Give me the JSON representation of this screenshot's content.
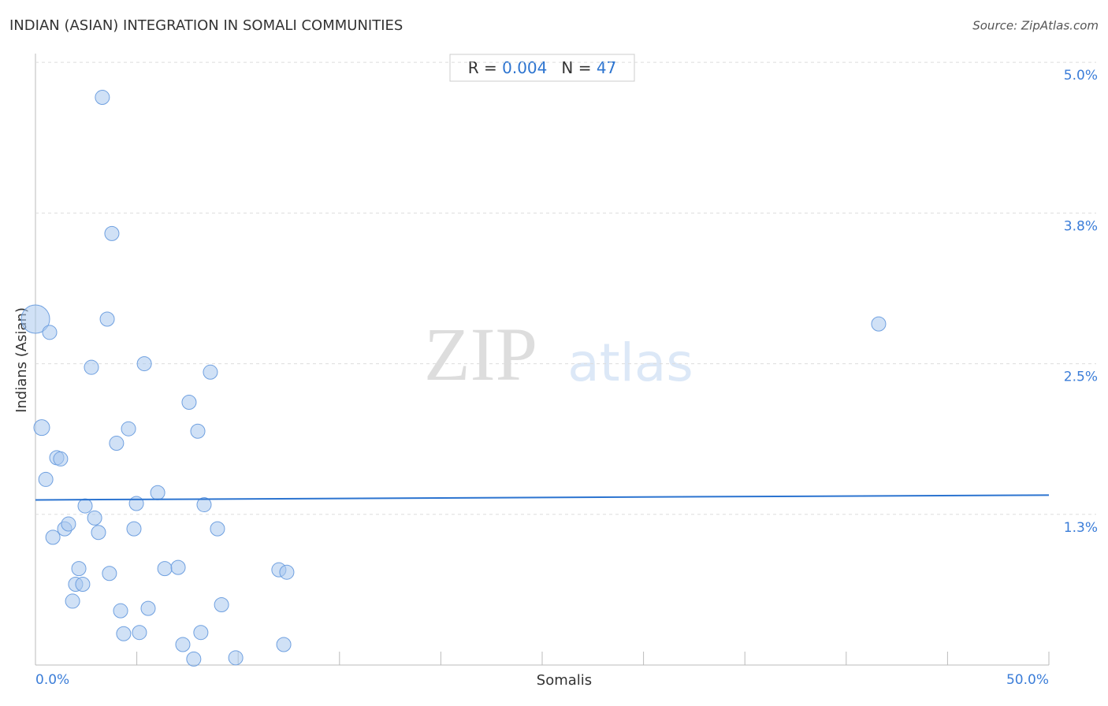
{
  "chart_data": {
    "type": "scatter",
    "title": "INDIAN (ASIAN) INTEGRATION IN SOMALI COMMUNITIES",
    "source": "Source: ZipAtlas.com",
    "xlabel": "Somalis",
    "ylabel": "Indians (Asian)",
    "watermark": [
      "ZIP",
      "atlas"
    ],
    "stats": {
      "r_label": "R =",
      "r": "0.004",
      "n_label": "N =",
      "n": "47"
    },
    "xlim": [
      0,
      50
    ],
    "ylim": [
      0,
      5.06
    ],
    "xticks": [
      {
        "value": 0,
        "label": "0.0%"
      },
      {
        "value": 5,
        "label": null
      },
      {
        "value": 10,
        "label": null
      },
      {
        "value": 15,
        "label": null
      },
      {
        "value": 20,
        "label": null
      },
      {
        "value": 25,
        "label": null
      },
      {
        "value": 30,
        "label": null
      },
      {
        "value": 35,
        "label": null
      },
      {
        "value": 40,
        "label": null
      },
      {
        "value": 45,
        "label": null
      },
      {
        "value": 50,
        "label": "50.0%"
      }
    ],
    "yticks": [
      {
        "value": 1.25,
        "label": "1.3%"
      },
      {
        "value": 2.5,
        "label": "2.5%"
      },
      {
        "value": 3.75,
        "label": "3.8%"
      },
      {
        "value": 5.0,
        "label": "5.0%"
      }
    ],
    "grid": true,
    "color": "#a9c8ef",
    "edge_color": "#6fa0e0",
    "trend": {
      "color": "#2c74d0",
      "x": [
        0,
        50
      ],
      "y": [
        1.37,
        1.41
      ]
    },
    "x": [
      0,
      0.7,
      0.31,
      0.51,
      0.86,
      1.05,
      1.24,
      1.44,
      1.63,
      1.83,
      1.98,
      2.14,
      2.33,
      2.45,
      2.76,
      2.92,
      3.11,
      3.3,
      3.54,
      3.65,
      3.77,
      4.0,
      4.2,
      4.35,
      4.59,
      4.86,
      4.98,
      5.13,
      5.37,
      5.56,
      6.03,
      6.38,
      7.04,
      7.27,
      7.58,
      7.81,
      8.01,
      8.16,
      8.32,
      8.63,
      8.98,
      9.18,
      9.88,
      12.01,
      12.25,
      12.4,
      41.6
    ],
    "values": [
      2.87,
      2.76,
      1.97,
      1.54,
      1.06,
      1.72,
      1.71,
      1.13,
      1.17,
      0.53,
      0.67,
      0.8,
      0.67,
      1.32,
      2.47,
      1.22,
      1.1,
      4.71,
      2.87,
      0.76,
      3.58,
      1.84,
      0.45,
      0.26,
      1.96,
      1.13,
      1.34,
      0.27,
      2.5,
      0.47,
      1.43,
      0.8,
      0.81,
      0.17,
      2.18,
      0.05,
      1.94,
      0.27,
      1.33,
      2.43,
      1.13,
      0.5,
      0.06,
      0.79,
      0.17,
      0.77,
      2.83
    ],
    "sizes": [
      18,
      9,
      10,
      9,
      9,
      9,
      9,
      9,
      9,
      9,
      9,
      9,
      9,
      9,
      9,
      9,
      9,
      9,
      9,
      9,
      9,
      9,
      9,
      9,
      9,
      9,
      9,
      9,
      9,
      9,
      9,
      9,
      9,
      9,
      9,
      9,
      9,
      9,
      9,
      9,
      9,
      9,
      9,
      9,
      9,
      9,
      9
    ]
  }
}
